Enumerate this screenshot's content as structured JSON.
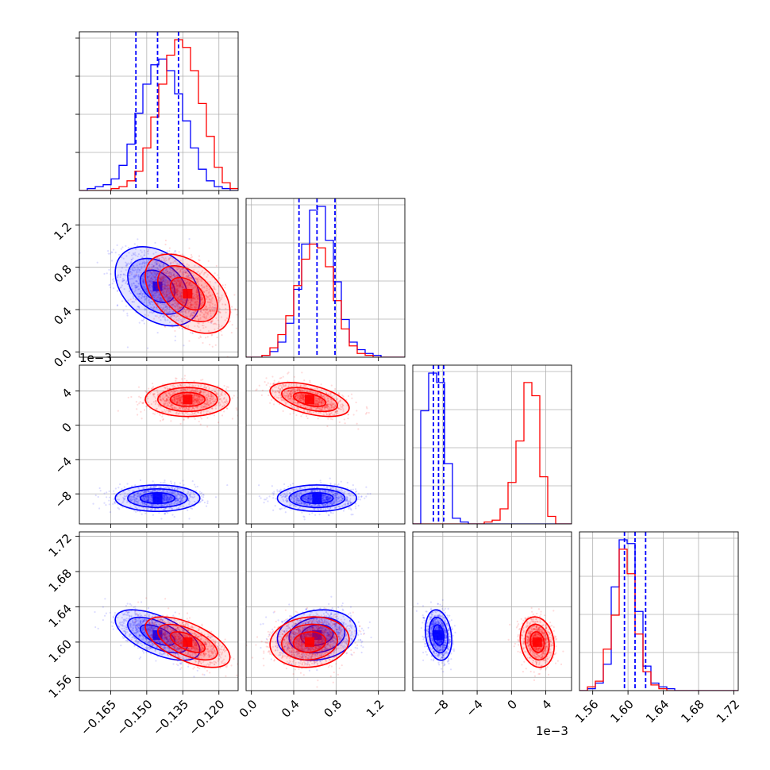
{
  "chart_data": {
    "type": "corner",
    "colors": {
      "blue": "#0000ff",
      "red": "#ff0000",
      "grid": "#b0b0b0"
    },
    "parameters": [
      {
        "range": [
          -0.178,
          -0.112
        ],
        "ticks": [
          -0.165,
          -0.15,
          -0.135,
          -0.12
        ],
        "tick_labels": [
          "−0.165",
          "−0.150",
          "−0.135",
          "−0.120"
        ]
      },
      {
        "range": [
          -0.05,
          1.45
        ],
        "ticks": [
          0.0,
          0.4,
          0.8,
          1.2
        ],
        "tick_labels": [
          "0.0",
          "0.4",
          "0.8",
          "1.2"
        ]
      },
      {
        "range": [
          -0.0115,
          0.007
        ],
        "ticks": [
          -0.008,
          -0.004,
          0.0,
          0.004
        ],
        "tick_labels": [
          "−8",
          "−4",
          "0",
          "4"
        ],
        "scale_label": "1e−3"
      },
      {
        "range": [
          1.545,
          1.725
        ],
        "ticks": [
          1.56,
          1.6,
          1.64,
          1.68,
          1.72
        ],
        "tick_labels": [
          "1.56",
          "1.60",
          "1.64",
          "1.68",
          "1.72"
        ]
      }
    ],
    "marginals": [
      {
        "bins": [
          -0.178,
          -0.112
        ],
        "blue": [
          0,
          1,
          2,
          3,
          6,
          13,
          24,
          40,
          55,
          65,
          68,
          62,
          50,
          36,
          22,
          11,
          5,
          2,
          1,
          0
        ],
        "red": [
          0,
          0,
          0,
          0,
          1,
          2,
          5,
          10,
          22,
          38,
          55,
          70,
          78,
          74,
          62,
          45,
          28,
          12,
          4,
          1
        ],
        "quantiles": [
          -0.1545,
          -0.1455,
          -0.1368
        ]
      },
      {
        "bins": [
          -0.05,
          1.45
        ],
        "blue": [
          0,
          0,
          1,
          3,
          8,
          18,
          36,
          60,
          78,
          80,
          62,
          40,
          20,
          8,
          4,
          2,
          1,
          0,
          0,
          0
        ],
        "red": [
          0,
          0,
          1,
          5,
          12,
          22,
          38,
          52,
          60,
          58,
          48,
          30,
          15,
          6,
          2,
          1,
          0,
          0,
          0,
          0
        ],
        "quantiles": [
          0.45,
          0.62,
          0.79
        ]
      },
      {
        "bins": [
          -0.0115,
          0.007
        ],
        "blue": [
          0,
          60,
          80,
          75,
          32,
          3,
          1,
          0,
          0,
          0,
          0,
          0,
          0,
          0,
          0,
          0,
          0,
          0,
          0,
          0
        ],
        "red": [
          0,
          0,
          0,
          0,
          0,
          0,
          0,
          0,
          0,
          1,
          2,
          8,
          22,
          44,
          75,
          68,
          25,
          4,
          0,
          0
        ],
        "quantiles": [
          -0.0091,
          -0.0085,
          -0.0079
        ]
      },
      {
        "bins": [
          1.545,
          1.725
        ],
        "blue": [
          0,
          1,
          4,
          14,
          55,
          80,
          78,
          42,
          13,
          4,
          2,
          1,
          0,
          0,
          0,
          0,
          0,
          0,
          0,
          0
        ],
        "red": [
          0,
          2,
          5,
          22,
          40,
          75,
          62,
          30,
          10,
          3,
          1,
          0,
          0,
          0,
          0,
          0,
          0,
          0,
          0,
          0
        ],
        "quantiles": [
          1.596,
          1.608,
          1.62
        ]
      }
    ],
    "series": [
      {
        "color": "blue",
        "mean": [
          -0.1455,
          0.62,
          -0.0085,
          1.608
        ],
        "sd": [
          0.008,
          0.17,
          0.0007,
          0.013
        ]
      },
      {
        "color": "red",
        "mean": [
          -0.133,
          0.55,
          0.003,
          1.6
        ],
        "sd": [
          0.008,
          0.17,
          0.0009,
          0.013
        ]
      }
    ],
    "correlations": {
      "blue": {
        "1,0": -0.35,
        "2,0": 0.0,
        "2,1": 0.0,
        "3,0": -0.6,
        "3,1": 0.15,
        "3,2": -0.2
      },
      "red": {
        "1,0": -0.45,
        "2,0": 0.0,
        "2,1": -0.5,
        "3,0": -0.6,
        "3,1": 0.1,
        "3,2": -0.15
      }
    },
    "grid": true
  }
}
